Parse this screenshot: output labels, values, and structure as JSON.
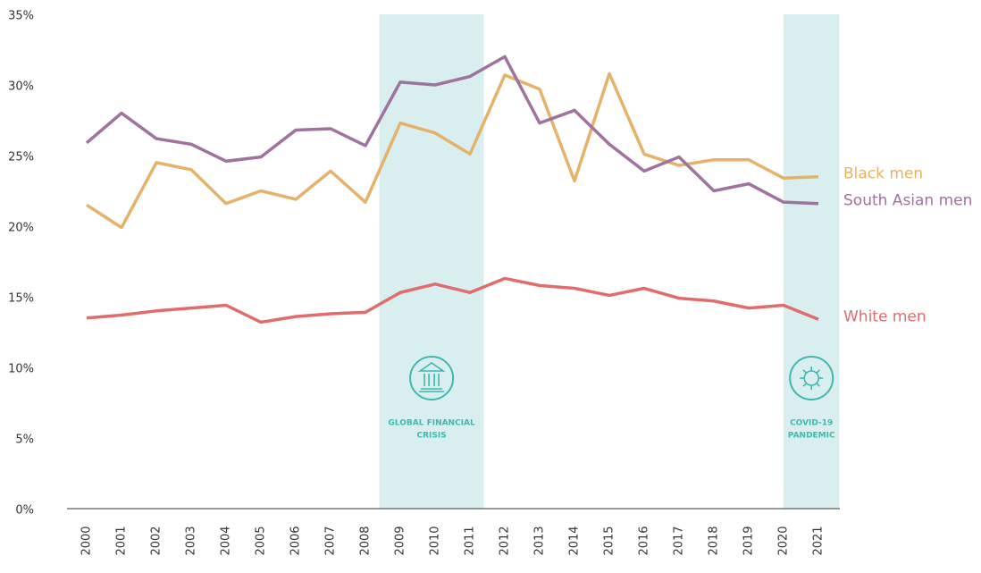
{
  "chart_data": {
    "type": "line",
    "x": [
      2000,
      2001,
      2002,
      2003,
      2004,
      2005,
      2006,
      2007,
      2008,
      2009,
      2010,
      2011,
      2012,
      2013,
      2014,
      2015,
      2016,
      2017,
      2018,
      2019,
      2020,
      2021
    ],
    "xlim": [
      1999.4,
      2021.6
    ],
    "ylim": [
      0,
      35
    ],
    "yticks": [
      {
        "value": 0,
        "label": "0%"
      },
      {
        "value": 5,
        "label": "5%"
      },
      {
        "value": 10,
        "label": "10%"
      },
      {
        "value": 15,
        "label": "15%"
      },
      {
        "value": 20,
        "label": "20%"
      },
      {
        "value": 25,
        "label": "25%"
      },
      {
        "value": 30,
        "label": "30%"
      },
      {
        "value": 35,
        "label": "35%"
      }
    ],
    "series": [
      {
        "name": "Black men",
        "color": "#e6b26a",
        "values": [
          21.5,
          19.9,
          24.5,
          24.0,
          21.6,
          22.5,
          21.9,
          23.9,
          21.7,
          27.3,
          26.6,
          25.1,
          30.7,
          29.7,
          23.2,
          30.8,
          25.1,
          24.3,
          24.7,
          24.7,
          23.4,
          23.5
        ]
      },
      {
        "name": "South Asian men",
        "color": "#a0729f",
        "values": [
          25.9,
          28.0,
          26.2,
          25.8,
          24.6,
          24.9,
          26.8,
          26.9,
          25.7,
          30.2,
          30.0,
          30.6,
          32.0,
          27.3,
          28.2,
          25.8,
          23.9,
          24.9,
          22.5,
          23.0,
          21.7,
          21.6
        ]
      },
      {
        "name": "White men",
        "color": "#e06c6e",
        "values": [
          13.5,
          13.7,
          14.0,
          14.2,
          14.4,
          13.2,
          13.6,
          13.8,
          13.9,
          15.3,
          15.9,
          15.3,
          16.3,
          15.8,
          15.6,
          15.1,
          15.6,
          14.9,
          14.7,
          14.2,
          14.4,
          13.4
        ]
      }
    ],
    "annotations": [
      {
        "label": [
          "GLOBAL FINANCIAL",
          "CRISIS"
        ],
        "start": 2008.4,
        "end": 2011.4,
        "icon": "bank"
      },
      {
        "label": [
          "COVID-19",
          "PANDEMIC"
        ],
        "start": 2020,
        "end": 2021.6,
        "icon": "virus"
      }
    ],
    "shade_color": "#d9efef",
    "annotation_color": "#3fb8ad"
  }
}
